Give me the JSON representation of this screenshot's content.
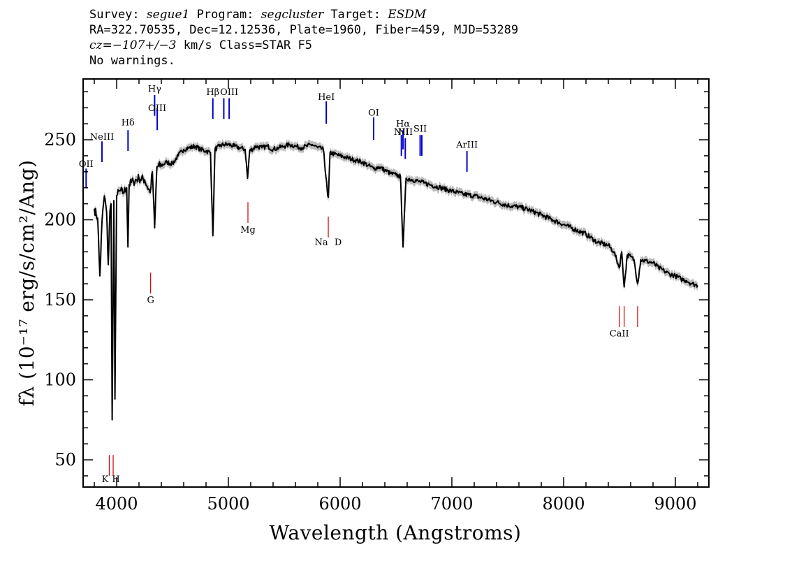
{
  "header": {
    "line1": {
      "survey_label": "Survey: ",
      "survey": "segue1",
      "program_label": " Program: ",
      "program": "segcluster",
      "target_label": " Target: ",
      "target": "ESDM"
    },
    "line2": "RA=322.70535, Dec=12.12536, Plate=1960, Fiber=459, MJD=53289",
    "line3": {
      "cz_label": "cz=",
      "cz": "−107+/−3",
      "rest": " km/s Class=STAR F5"
    },
    "line4": "No warnings."
  },
  "chart_data": {
    "type": "line",
    "xlabel": "Wavelength (Angstroms)",
    "ylabel": "fλ (10⁻¹⁷ erg/s/cm²/Ang)",
    "xlim": [
      3700,
      9300
    ],
    "ylim": [
      33,
      288
    ],
    "xticks": [
      4000,
      5000,
      6000,
      7000,
      8000,
      9000
    ],
    "yticks": [
      50,
      100,
      150,
      200,
      250
    ],
    "grid": false,
    "series": [
      {
        "name": "",
        "color": "#000000",
        "error_color": "#bbbbbb",
        "points": [
          [
            3800,
            207
          ],
          [
            3830,
            201
          ],
          [
            3850,
            165
          ],
          [
            3870,
            200
          ],
          [
            3890,
            215
          ],
          [
            3910,
            205
          ],
          [
            3925,
            172
          ],
          [
            3940,
            205
          ],
          [
            3950,
            210
          ],
          [
            3960,
            75
          ],
          [
            3975,
            212
          ],
          [
            3985,
            88
          ],
          [
            4000,
            215
          ],
          [
            4030,
            218
          ],
          [
            4060,
            217
          ],
          [
            4090,
            220
          ],
          [
            4101,
            183
          ],
          [
            4112,
            222
          ],
          [
            4150,
            224
          ],
          [
            4200,
            226
          ],
          [
            4250,
            225
          ],
          [
            4300,
            217
          ],
          [
            4320,
            230
          ],
          [
            4340,
            195
          ],
          [
            4360,
            233
          ],
          [
            4400,
            234
          ],
          [
            4450,
            236
          ],
          [
            4500,
            235
          ],
          [
            4550,
            240
          ],
          [
            4600,
            244
          ],
          [
            4650,
            245
          ],
          [
            4700,
            246
          ],
          [
            4750,
            244
          ],
          [
            4800,
            243
          ],
          [
            4840,
            242
          ],
          [
            4861,
            190
          ],
          [
            4880,
            244
          ],
          [
            4920,
            246
          ],
          [
            4960,
            247
          ],
          [
            5000,
            247
          ],
          [
            5050,
            246
          ],
          [
            5100,
            245
          ],
          [
            5150,
            244
          ],
          [
            5172,
            226
          ],
          [
            5190,
            243
          ],
          [
            5250,
            246
          ],
          [
            5300,
            245
          ],
          [
            5350,
            246
          ],
          [
            5400,
            244
          ],
          [
            5450,
            245
          ],
          [
            5500,
            246
          ],
          [
            5550,
            247
          ],
          [
            5600,
            246
          ],
          [
            5650,
            245
          ],
          [
            5700,
            246
          ],
          [
            5750,
            247
          ],
          [
            5800,
            245
          ],
          [
            5850,
            244
          ],
          [
            5889,
            215
          ],
          [
            5895,
            214
          ],
          [
            5910,
            242
          ],
          [
            5950,
            241
          ],
          [
            6000,
            240
          ],
          [
            6050,
            239
          ],
          [
            6100,
            238
          ],
          [
            6150,
            237
          ],
          [
            6200,
            236
          ],
          [
            6250,
            234
          ],
          [
            6300,
            232
          ],
          [
            6350,
            233
          ],
          [
            6400,
            231
          ],
          [
            6450,
            229
          ],
          [
            6500,
            228
          ],
          [
            6540,
            227
          ],
          [
            6563,
            183
          ],
          [
            6590,
            226
          ],
          [
            6650,
            225
          ],
          [
            6700,
            224
          ],
          [
            6750,
            223
          ],
          [
            6800,
            222
          ],
          [
            6900,
            220
          ],
          [
            7000,
            218
          ],
          [
            7100,
            216
          ],
          [
            7200,
            215
          ],
          [
            7300,
            213
          ],
          [
            7400,
            211
          ],
          [
            7500,
            209
          ],
          [
            7600,
            208
          ],
          [
            7700,
            206
          ],
          [
            7800,
            203
          ],
          [
            7900,
            200
          ],
          [
            8000,
            197
          ],
          [
            8100,
            194
          ],
          [
            8200,
            191
          ],
          [
            8300,
            186
          ],
          [
            8400,
            184
          ],
          [
            8450,
            180
          ],
          [
            8498,
            170
          ],
          [
            8520,
            180
          ],
          [
            8542,
            158
          ],
          [
            8570,
            178
          ],
          [
            8600,
            177
          ],
          [
            8630,
            175
          ],
          [
            8662,
            160
          ],
          [
            8690,
            175
          ],
          [
            8750,
            174
          ],
          [
            8800,
            173
          ],
          [
            8850,
            170
          ],
          [
            8900,
            168
          ],
          [
            8950,
            166
          ],
          [
            9000,
            165
          ],
          [
            9050,
            163
          ],
          [
            9100,
            162
          ],
          [
            9150,
            160
          ],
          [
            9200,
            159
          ]
        ]
      }
    ],
    "emission_lines": [
      {
        "label": "OII",
        "x": 3727,
        "color": "#0000cc",
        "y0": 220,
        "y1": 232,
        "label_y": 233
      },
      {
        "label": "NeIII",
        "x": 3869,
        "color": "#0000cc",
        "y0": 236,
        "y1": 249,
        "label_y": 250
      },
      {
        "label": "Hδ",
        "x": 4102,
        "color": "#0000cc",
        "y0": 243,
        "y1": 256,
        "label_y": 259
      },
      {
        "label": "Hγ",
        "x": 4340,
        "color": "#0000cc",
        "y0": 265,
        "y1": 278,
        "label_y": 280
      },
      {
        "label": "OIII",
        "x": 4363,
        "color": "#0000cc",
        "y0": 256,
        "y1": 270,
        "label_y": 268
      },
      {
        "label": "Hβ",
        "x": 4861,
        "color": "#0000cc",
        "y0": 263,
        "y1": 276,
        "label_y": 278
      },
      {
        "label": "OIII",
        "x": 4959,
        "color": "#0000cc",
        "y0": 263,
        "y1": 276,
        "label_y": null
      },
      {
        "label": "OIII",
        "x": 5007,
        "color": "#0000cc",
        "y0": 263,
        "y1": 276,
        "label_y": 278
      },
      {
        "label": "HeI",
        "x": 5876,
        "color": "#0000cc",
        "y0": 260,
        "y1": 274,
        "label_y": 275
      },
      {
        "label": "OI",
        "x": 6300,
        "color": "#0000cc",
        "y0": 250,
        "y1": 264,
        "label_y": 265
      },
      {
        "label": "NII",
        "x": 6548,
        "color": "#0000cc",
        "y0": 240,
        "y1": 253,
        "label_y": 253
      },
      {
        "label": "Hα",
        "x": 6563,
        "color": "#0000cc",
        "y0": 244,
        "y1": 256,
        "label_y": 258
      },
      {
        "label": "NII",
        "x": 6583,
        "color": "#0000cc",
        "y0": 238,
        "y1": 251,
        "label_y": 253
      },
      {
        "label": "SII",
        "x": 6716,
        "color": "#0000cc",
        "y0": 240,
        "y1": 253,
        "label_y": 255
      },
      {
        "label": "SII",
        "x": 6731,
        "color": "#0000cc",
        "y0": 240,
        "y1": 253,
        "label_y": null
      },
      {
        "label": "ArIII",
        "x": 7135,
        "color": "#0000cc",
        "y0": 230,
        "y1": 243,
        "label_y": 245
      }
    ],
    "absorption_lines": [
      {
        "label": "K",
        "x": 3934,
        "color": "#cc0000",
        "y0": 40,
        "y1": 53,
        "label_y": 36
      },
      {
        "label": "H",
        "x": 3969,
        "color": "#cc0000",
        "y0": 40,
        "y1": 53,
        "label_y": 36
      },
      {
        "label": "G",
        "x": 4304,
        "color": "#cc0000",
        "y0": 154,
        "y1": 167,
        "label_y": 148
      },
      {
        "label": "Mg",
        "x": 5175,
        "color": "#cc0000",
        "y0": 198,
        "y1": 211,
        "label_y": 192
      },
      {
        "label": "Na",
        "x": 5894,
        "color": "#cc0000",
        "y0": 189,
        "y1": 202,
        "label_y": 184
      },
      {
        "label": "D",
        "x": 5894,
        "color": "#cc0000",
        "y0": null,
        "y1": null,
        "label_y": 184
      },
      {
        "label": "CaII",
        "x": 8498,
        "color": "#cc0000",
        "y0": 133,
        "y1": 146,
        "label_y": 127
      },
      {
        "label": "CaII",
        "x": 8542,
        "color": "#cc0000",
        "y0": 133,
        "y1": 146,
        "label_y": null
      },
      {
        "label": "CaII",
        "x": 8662,
        "color": "#cc0000",
        "y0": 133,
        "y1": 146,
        "label_y": null
      }
    ]
  }
}
